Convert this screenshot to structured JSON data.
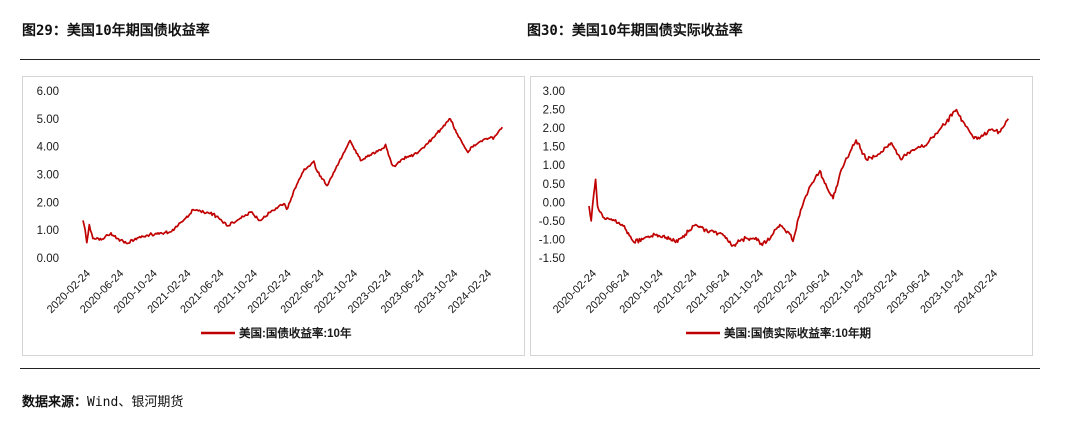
{
  "header": {
    "left_title": "图29：美国10年期国债收益率",
    "right_title": "图30：美国10年期国债实际收益率"
  },
  "footer": {
    "source_label": "数据来源：",
    "source_value": "Wind、银河期货"
  },
  "colors": {
    "series": "#c00000",
    "axis": "#bfbfbf",
    "text": "#1a1a1a"
  },
  "chart_data": [
    {
      "type": "line",
      "title": "",
      "xlabel": "",
      "ylabel": "",
      "ylim": [
        0,
        6
      ],
      "yticks": [
        "6.00",
        "5.00",
        "4.00",
        "3.00",
        "2.00",
        "1.00",
        "0.00"
      ],
      "ytick_values": [
        6,
        5,
        4,
        3,
        2,
        1,
        0
      ],
      "xticks": [
        "2020-02-24",
        "2020-06-24",
        "2020-10-24",
        "2021-02-24",
        "2021-06-24",
        "2021-10-24",
        "2022-02-24",
        "2022-06-24",
        "2022-10-24",
        "2023-02-24",
        "2023-06-24",
        "2023-10-24",
        "2024-02-24"
      ],
      "xlim": [
        "2020-02-24",
        "2024-05-10"
      ],
      "grid": false,
      "legend": "bottom-center",
      "series": [
        {
          "name": "美国:国债收益率:10年",
          "points": [
            [
              "2020-02-24",
              1.35
            ],
            [
              "2020-03-03",
              1.0
            ],
            [
              "2020-03-09",
              0.55
            ],
            [
              "2020-03-18",
              1.2
            ],
            [
              "2020-03-31",
              0.7
            ],
            [
              "2020-05-01",
              0.65
            ],
            [
              "2020-06-05",
              0.9
            ],
            [
              "2020-06-24",
              0.7
            ],
            [
              "2020-08-04",
              0.52
            ],
            [
              "2020-09-01",
              0.7
            ],
            [
              "2020-10-24",
              0.84
            ],
            [
              "2020-12-01",
              0.9
            ],
            [
              "2021-01-04",
              0.93
            ],
            [
              "2021-02-24",
              1.35
            ],
            [
              "2021-03-31",
              1.74
            ],
            [
              "2021-06-01",
              1.6
            ],
            [
              "2021-06-24",
              1.5
            ],
            [
              "2021-08-04",
              1.15
            ],
            [
              "2021-09-01",
              1.3
            ],
            [
              "2021-10-24",
              1.65
            ],
            [
              "2021-12-03",
              1.35
            ],
            [
              "2022-01-03",
              1.63
            ],
            [
              "2022-02-24",
              1.95
            ],
            [
              "2022-03-07",
              1.75
            ],
            [
              "2022-04-01",
              2.4
            ],
            [
              "2022-05-06",
              3.1
            ],
            [
              "2022-06-14",
              3.48
            ],
            [
              "2022-06-24",
              3.15
            ],
            [
              "2022-08-01",
              2.6
            ],
            [
              "2022-09-01",
              3.2
            ],
            [
              "2022-10-24",
              4.22
            ],
            [
              "2022-12-01",
              3.5
            ],
            [
              "2023-01-05",
              3.7
            ],
            [
              "2023-02-24",
              3.95
            ],
            [
              "2023-03-02",
              4.08
            ],
            [
              "2023-03-24",
              3.38
            ],
            [
              "2023-04-06",
              3.29
            ],
            [
              "2023-05-01",
              3.55
            ],
            [
              "2023-06-24",
              3.75
            ],
            [
              "2023-08-01",
              4.1
            ],
            [
              "2023-10-24",
              4.99
            ],
            [
              "2023-11-15",
              4.5
            ],
            [
              "2023-12-27",
              3.79
            ],
            [
              "2024-01-10",
              4.0
            ],
            [
              "2024-02-24",
              4.27
            ],
            [
              "2024-04-01",
              4.35
            ],
            [
              "2024-04-30",
              4.7
            ]
          ]
        }
      ]
    },
    {
      "type": "line",
      "title": "",
      "xlabel": "",
      "ylabel": "",
      "ylim": [
        -1.5,
        3
      ],
      "yticks": [
        "3.00",
        "2.50",
        "2.00",
        "1.50",
        "1.00",
        "0.50",
        "0.00",
        "-0.50",
        "-1.00",
        "-1.50"
      ],
      "ytick_values": [
        3,
        2.5,
        2,
        1.5,
        1,
        0.5,
        0,
        -0.5,
        -1,
        -1.5
      ],
      "xticks": [
        "2020-02-24",
        "2020-06-24",
        "2020-10-24",
        "2021-02-24",
        "2021-06-24",
        "2021-10-24",
        "2022-02-24",
        "2022-06-24",
        "2022-10-24",
        "2023-02-24",
        "2023-06-24",
        "2023-10-24",
        "2024-02-24"
      ],
      "xlim": [
        "2020-02-24",
        "2024-05-10"
      ],
      "grid": false,
      "legend": "bottom-center",
      "series": [
        {
          "name": "美国:国债实际收益率:10年期",
          "points": [
            [
              "2020-02-24",
              -0.1
            ],
            [
              "2020-03-03",
              -0.5
            ],
            [
              "2020-03-12",
              0.2
            ],
            [
              "2020-03-19",
              0.62
            ],
            [
              "2020-03-26",
              -0.1
            ],
            [
              "2020-04-15",
              -0.4
            ],
            [
              "2020-05-15",
              -0.45
            ],
            [
              "2020-06-24",
              -0.6
            ],
            [
              "2020-07-20",
              -0.9
            ],
            [
              "2020-08-06",
              -1.08
            ],
            [
              "2020-09-15",
              -0.95
            ],
            [
              "2020-10-24",
              -0.88
            ],
            [
              "2020-12-01",
              -0.95
            ],
            [
              "2021-01-04",
              -1.08
            ],
            [
              "2021-02-24",
              -0.75
            ],
            [
              "2021-03-19",
              -0.6
            ],
            [
              "2021-05-01",
              -0.8
            ],
            [
              "2021-06-24",
              -0.85
            ],
            [
              "2021-07-29",
              -1.18
            ],
            [
              "2021-09-01",
              -1.0
            ],
            [
              "2021-10-24",
              -0.95
            ],
            [
              "2021-11-08",
              -1.13
            ],
            [
              "2021-12-15",
              -0.98
            ],
            [
              "2022-01-19",
              -0.6
            ],
            [
              "2022-02-24",
              -0.85
            ],
            [
              "2022-03-08",
              -1.05
            ],
            [
              "2022-04-05",
              -0.2
            ],
            [
              "2022-05-06",
              0.4
            ],
            [
              "2022-06-14",
              0.85
            ],
            [
              "2022-06-24",
              0.65
            ],
            [
              "2022-08-01",
              0.1
            ],
            [
              "2022-09-01",
              0.9
            ],
            [
              "2022-10-24",
              1.68
            ],
            [
              "2022-12-01",
              1.15
            ],
            [
              "2023-01-15",
              1.3
            ],
            [
              "2023-02-24",
              1.55
            ],
            [
              "2023-03-02",
              1.6
            ],
            [
              "2023-04-06",
              1.15
            ],
            [
              "2023-05-15",
              1.4
            ],
            [
              "2023-06-24",
              1.5
            ],
            [
              "2023-08-20",
              1.92
            ],
            [
              "2023-10-24",
              2.5
            ],
            [
              "2023-11-15",
              2.2
            ],
            [
              "2023-12-27",
              1.72
            ],
            [
              "2024-01-20",
              1.75
            ],
            [
              "2024-02-24",
              1.95
            ],
            [
              "2024-04-01",
              1.9
            ],
            [
              "2024-04-30",
              2.25
            ]
          ]
        }
      ]
    }
  ]
}
